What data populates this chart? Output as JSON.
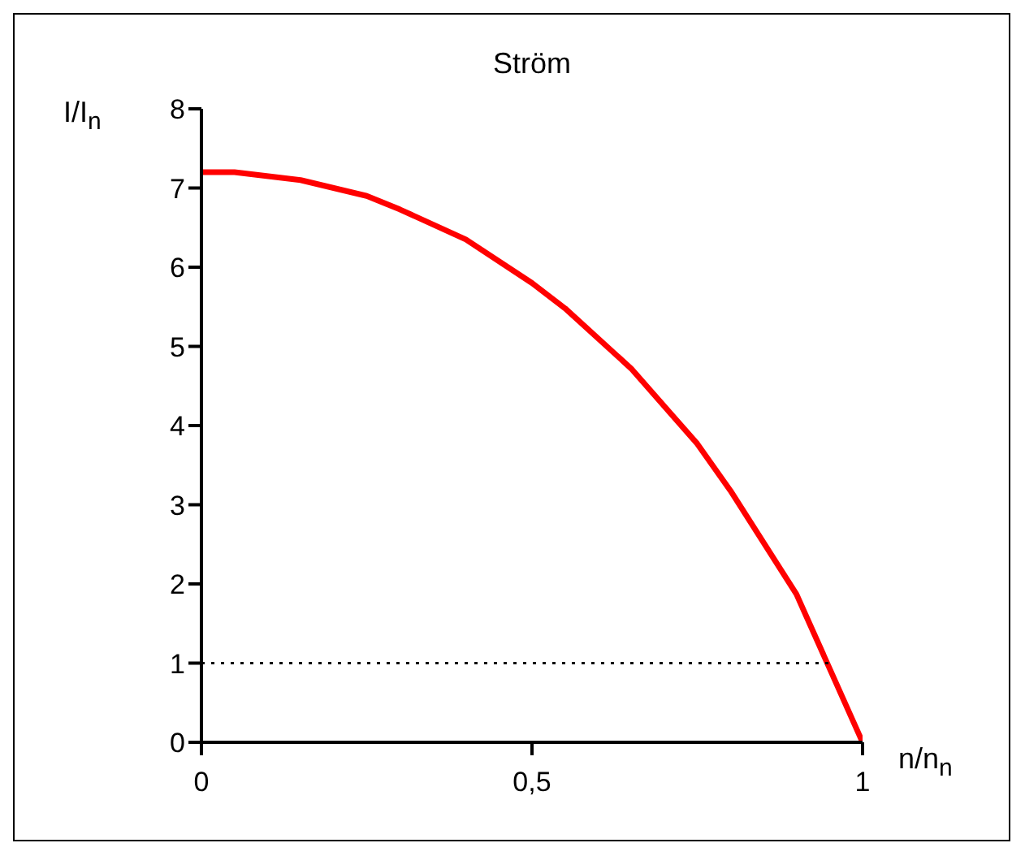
{
  "chart_data": {
    "type": "line",
    "title": "Ström",
    "xlabel": "n/n$_{n}$",
    "ylabel": "I/I$_{n}$",
    "xlim": [
      0,
      1
    ],
    "xticks": [
      0,
      {
        "value": 0.5,
        "label": "0,5"
      },
      1
    ],
    "ylim": [
      0,
      8
    ],
    "yticks": [
      0,
      1,
      2,
      3,
      4,
      5,
      6,
      7,
      8
    ],
    "grid": false,
    "legend": false,
    "marker": "none",
    "series": [
      {
        "color": "#ff0000",
        "line_style": "solid",
        "x": [
          0,
          0.05,
          0.15,
          0.25,
          0.3,
          0.4,
          0.5,
          0.55,
          0.65,
          0.75,
          0.8,
          0.9,
          1
        ],
        "values": [
          7.2,
          7.2,
          7.1,
          6.9,
          6.73,
          6.35,
          5.8,
          5.48,
          4.72,
          3.77,
          3.18,
          1.87,
          0
        ]
      },
      {
        "color": "#000000",
        "line_style": "dotted",
        "x": [
          0,
          0.95
        ],
        "values": [
          1,
          1
        ]
      }
    ]
  }
}
